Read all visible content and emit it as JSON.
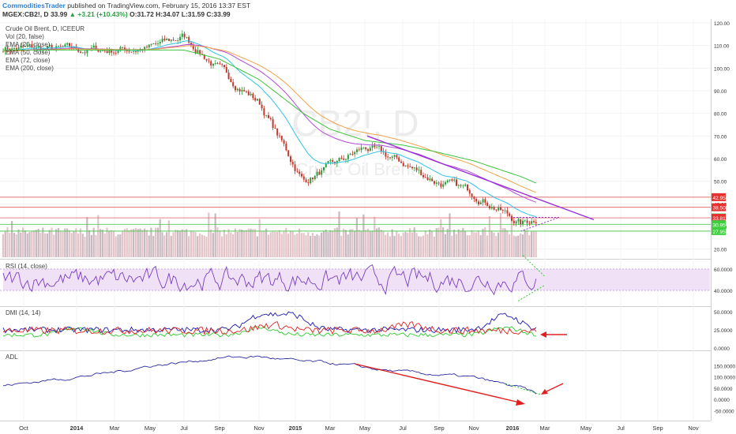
{
  "header": {
    "author": "CommoditiesTrader",
    "published": "published on TradingView.com, February 15, 2016 13:37 EST",
    "symbol": "MGEX:CB2!, D",
    "last": "33.99",
    "change": "▲ +3.21 (+10.43%)",
    "ohlc": "O:31.72 H:34.07 L:31.59 C:33.99"
  },
  "main_legend": [
    "Crude Oil Brent, D, ICEEUR",
    "Vol (20, false)",
    "EMA (20, close)",
    "EMA (50, close)",
    "EMA (72, close)",
    "EMA (200, close)"
  ],
  "watermark": {
    "symbol": "CB2!, D",
    "name": "Crude Oil Brent"
  },
  "colors": {
    "up": "#2a9d3f",
    "down": "#c0392b",
    "ema20": "#2ec4e8",
    "ema50": "#b04ad8",
    "ema72": "#f0a24a",
    "ema200": "#3dc43d",
    "trendline": "#9b30d9",
    "arrow": "#e02020",
    "red_level": "#e07070",
    "green_level": "#55cc55",
    "rsi_band": "#f0e1f7",
    "dmi_plus": "#e02020",
    "dmi_minus": "#1a1ab0",
    "adx": "#2ecc2e"
  },
  "x_axis_labels": [
    "Oct",
    "2014",
    "Mar",
    "May",
    "Jul",
    "Sep",
    "Nov",
    "2015",
    "Mar",
    "May",
    "Jul",
    "Sep",
    "Nov",
    "2016",
    "Mar",
    "May",
    "Jul",
    "Sep",
    "Nov"
  ],
  "price_ticks": [
    "120.00",
    "110.00",
    "100.00",
    "90.00",
    "80.00",
    "70.00",
    "60.00",
    "50.00",
    "40.00",
    "30.00",
    "20.00"
  ],
  "price_badges": [
    {
      "text": "42.95",
      "bg": "#e8312f"
    },
    {
      "text": "38.50",
      "bg": "#e8312f"
    },
    {
      "text": "33.99",
      "bg": "#3cb94a"
    },
    {
      "text": "33.81",
      "bg": "#e8312f"
    },
    {
      "text": "30.95",
      "bg": "#3cd13c"
    },
    {
      "text": "27.95",
      "bg": "#3cd13c"
    }
  ],
  "rsi": {
    "label": "RSI (14, close)",
    "ticks": [
      "60.0000",
      "40.0000"
    ]
  },
  "dmi": {
    "label": "DMI (14, 14)",
    "ticks": [
      "50.0000",
      "25.0000",
      "0.0000"
    ]
  },
  "adl": {
    "label": "ADL",
    "ticks": [
      "150.0000",
      "100.0000",
      "50.0000",
      "0.0000",
      "-50.0000"
    ]
  },
  "chart_data": {
    "type": "line",
    "title": "Crude Oil Brent, D, ICEEUR",
    "x": [
      "2013-10",
      "2014-01",
      "2014-03",
      "2014-05",
      "2014-07",
      "2014-09",
      "2014-11",
      "2015-01",
      "2015-03",
      "2015-05",
      "2015-07",
      "2015-09",
      "2015-11",
      "2016-01",
      "2016-02"
    ],
    "series": [
      {
        "name": "Crude Oil Brent",
        "values": [
          109,
          108,
          108,
          109,
          114,
          99,
          85,
          50,
          56,
          65,
          58,
          50,
          45,
          31,
          34
        ]
      },
      {
        "name": "EMA (200, close)",
        "values": [
          108,
          108,
          108,
          108,
          108,
          104,
          95,
          80,
          73,
          68,
          66,
          63,
          59,
          52,
          49
        ]
      }
    ],
    "ylim": [
      20,
      120
    ],
    "levels": [
      42.95,
      38.5,
      33.81,
      30.95,
      27.95
    ],
    "rsi_last": 48,
    "adl_last": 20
  }
}
